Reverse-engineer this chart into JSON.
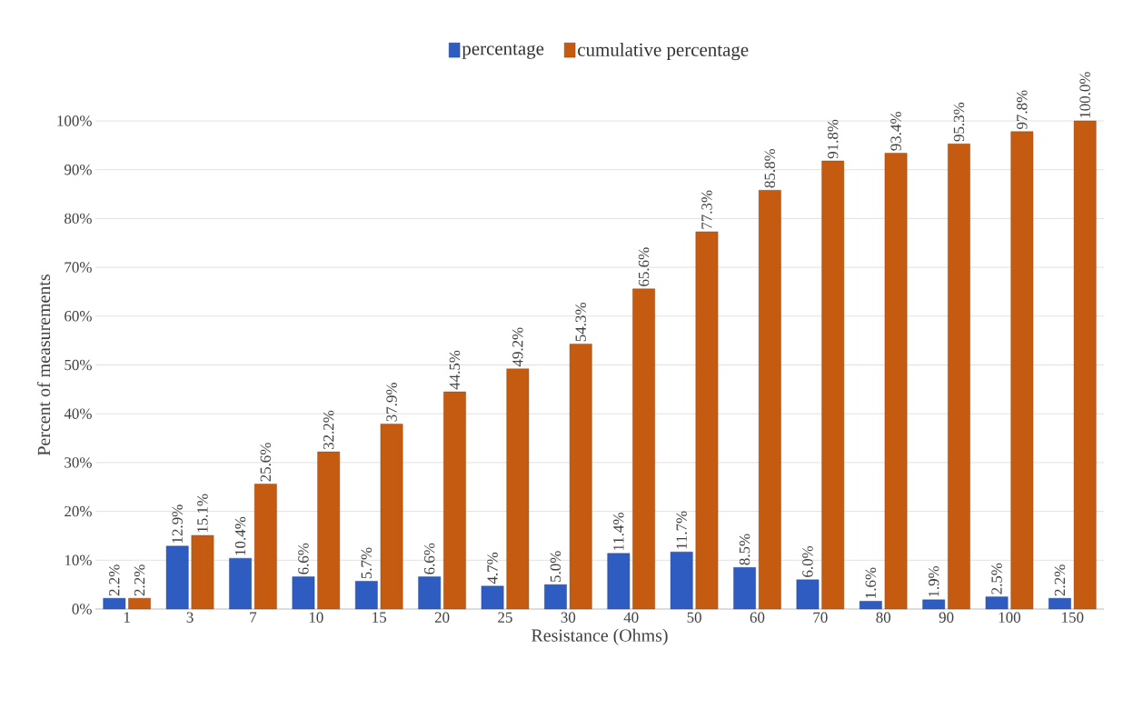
{
  "chart_data": {
    "type": "bar",
    "xlabel": "Resistance (Ohms)",
    "ylabel": "Percent of measurements",
    "categories": [
      "1",
      "3",
      "7",
      "10",
      "15",
      "20",
      "25",
      "30",
      "40",
      "50",
      "60",
      "70",
      "80",
      "90",
      "100",
      "150"
    ],
    "series": [
      {
        "name": "percentage",
        "color": "#2e5cc0",
        "values": [
          2.2,
          12.9,
          10.4,
          6.6,
          5.7,
          6.6,
          4.7,
          5.0,
          11.4,
          11.7,
          8.5,
          6.0,
          1.6,
          1.9,
          2.5,
          2.2
        ],
        "value_labels": [
          "2.2%",
          "12.9%",
          "10.4%",
          "6.6%",
          "5.7%",
          "6.6%",
          "4.7%",
          "5.0%",
          "11.4%",
          "11.7%",
          "8.5%",
          "6.0%",
          "1.6%",
          "1.9%",
          "2.5%",
          "2.2%"
        ]
      },
      {
        "name": "cumulative percentage",
        "color": "#c55a11",
        "values": [
          2.2,
          15.1,
          25.6,
          32.2,
          37.9,
          44.5,
          49.2,
          54.3,
          65.6,
          77.3,
          85.8,
          91.8,
          93.4,
          95.3,
          97.8,
          100.0
        ],
        "value_labels": [
          "2.2%",
          "15.1%",
          "25.6%",
          "32.2%",
          "37.9%",
          "44.5%",
          "49.2%",
          "54.3%",
          "65.6%",
          "77.3%",
          "85.8%",
          "91.8%",
          "93.4%",
          "95.3%",
          "97.8%",
          "100.0%"
        ]
      }
    ],
    "ylim": [
      0,
      100
    ],
    "yticks": [
      {
        "value": 0,
        "label": "0%"
      },
      {
        "value": 10,
        "label": "10%"
      },
      {
        "value": 20,
        "label": "20%"
      },
      {
        "value": 30,
        "label": "30%"
      },
      {
        "value": 40,
        "label": "40%"
      },
      {
        "value": 50,
        "label": "50%"
      },
      {
        "value": 60,
        "label": "60%"
      },
      {
        "value": 70,
        "label": "70%"
      },
      {
        "value": 80,
        "label": "80%"
      },
      {
        "value": 90,
        "label": "90%"
      },
      {
        "value": 100,
        "label": "100%"
      }
    ],
    "grid": "y",
    "legend": "top"
  }
}
